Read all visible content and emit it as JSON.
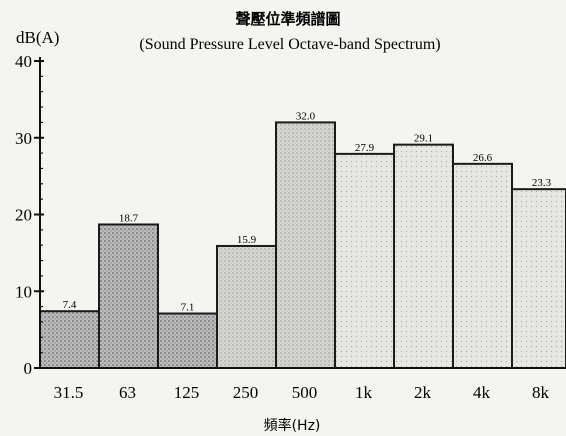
{
  "chart_data": {
    "type": "bar",
    "title": "聲壓位準頻譜圖",
    "subtitle": "(Sound Pressure Level Octave-band Spectrum)",
    "ylabel": "dB(A)",
    "xlabel": "頻率(Hz)",
    "categories": [
      "31.5",
      "63",
      "125",
      "250",
      "500",
      "1k",
      "2k",
      "4k",
      "8k"
    ],
    "values": [
      7.4,
      18.7,
      7.1,
      15.9,
      32.0,
      27.9,
      29.1,
      26.6,
      23.3
    ],
    "value_labels": [
      "7.4",
      "18.7",
      "7.1",
      "15.9",
      "32.0",
      "27.9",
      "29.1",
      "26.6",
      "23.3"
    ],
    "ylim": [
      0,
      40
    ],
    "yticks": [
      "0",
      "10",
      "20",
      "30",
      "40"
    ],
    "grid": false
  }
}
